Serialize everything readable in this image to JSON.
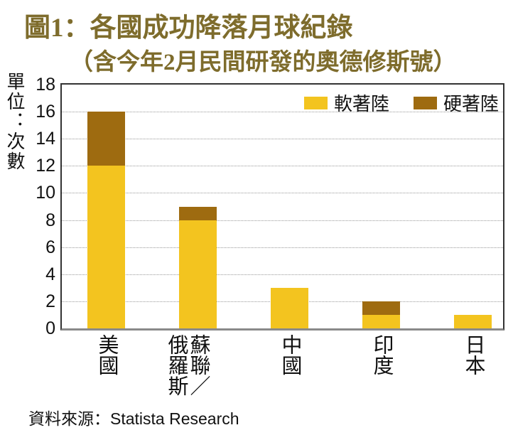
{
  "title": "圖1：各國成功降落月球紀錄",
  "subtitle": "（含今年2月民間研發的奧德修斯號）",
  "unit_label": "單位：次數",
  "source": {
    "prefix": "資料來源：",
    "name": "Statista Research"
  },
  "colors": {
    "title": "#7E6C2C",
    "soft": "#F3C41F",
    "hard": "#9E6B10",
    "grid": "#999999",
    "axis": "#333333",
    "axis_bottom": "#8a8a8a",
    "text": "#111111"
  },
  "chart_data": {
    "type": "bar",
    "stacked": true,
    "title": "圖1：各國成功降落月球紀錄（含今年2月民間研發的奧德修斯號）",
    "ylabel": "單位：次數",
    "categories": [
      "美國",
      "蘇聯／俄羅斯",
      "中國",
      "印度",
      "日本"
    ],
    "series": [
      {
        "name": "軟著陸",
        "color_key": "soft",
        "values": [
          12,
          8,
          3,
          1,
          1
        ]
      },
      {
        "name": "硬著陸",
        "color_key": "hard",
        "values": [
          4,
          1,
          0,
          1,
          0
        ]
      }
    ],
    "totals": [
      16,
      9,
      3,
      2,
      1
    ],
    "ylim": [
      0,
      18
    ],
    "ytick_step": 2,
    "grid": true,
    "legend_position": "top-right"
  }
}
